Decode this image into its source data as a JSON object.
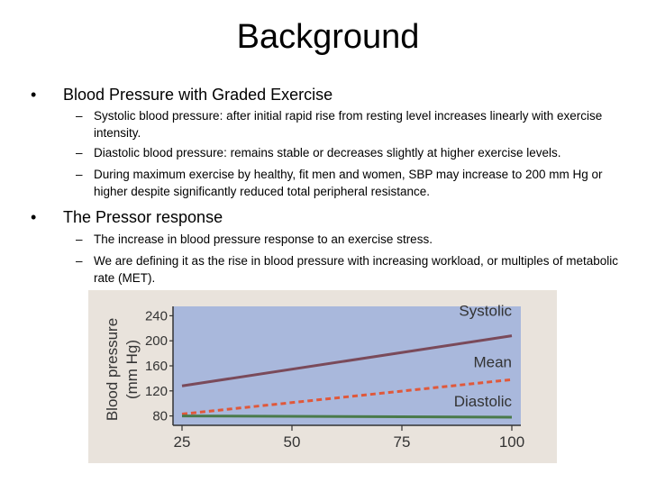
{
  "slide": {
    "title": "Background",
    "bullets": [
      {
        "text": "Blood Pressure with Graded Exercise",
        "subs": [
          "Systolic blood pressure: after initial rapid rise from resting level  increases linearly with exercise intensity.",
          "Diastolic blood pressure: remains stable or decreases slightly at higher exercise levels.",
          "During maximum exercise by healthy, fit men and women, SBP may increase to 200 mm Hg or higher despite significantly reduced total peripheral resistance."
        ]
      },
      {
        "text": "The Pressor response",
        "subs": [
          "The increase in blood pressure response to an exercise stress.",
          "We are defining it as the rise in blood pressure with increasing workload, or multiples of metabolic rate (MET)."
        ]
      }
    ],
    "bullet_glyph": "•",
    "dash_glyph": "–"
  },
  "chart_data": {
    "type": "line",
    "ylabel": "Blood pressure (mm Hg)",
    "ylabel_line1": "Blood pressure",
    "ylabel_line2": "(mm Hg)",
    "xlabel": "",
    "x": [
      25,
      100
    ],
    "xticks": [
      "25",
      "50",
      "75",
      "100"
    ],
    "xtick_values": [
      25,
      50,
      75,
      100
    ],
    "yticks": [
      "80",
      "120",
      "160",
      "200",
      "240"
    ],
    "ytick_values": [
      80,
      120,
      160,
      200,
      240
    ],
    "xlim": [
      25,
      100
    ],
    "ylim": [
      65,
      255
    ],
    "grid": false,
    "series": [
      {
        "name": "Systolic",
        "values": [
          128,
          208
        ],
        "color": "#7a4a5a",
        "style": "solid"
      },
      {
        "name": "Mean",
        "values": [
          83,
          138
        ],
        "color": "#e0583a",
        "style": "dashed"
      },
      {
        "name": "Diastolic",
        "values": [
          80,
          78
        ],
        "color": "#4a7a4a",
        "style": "solid"
      }
    ],
    "plot_bg": "#a9b8dc",
    "panel_bg": "#e9e3dc"
  }
}
